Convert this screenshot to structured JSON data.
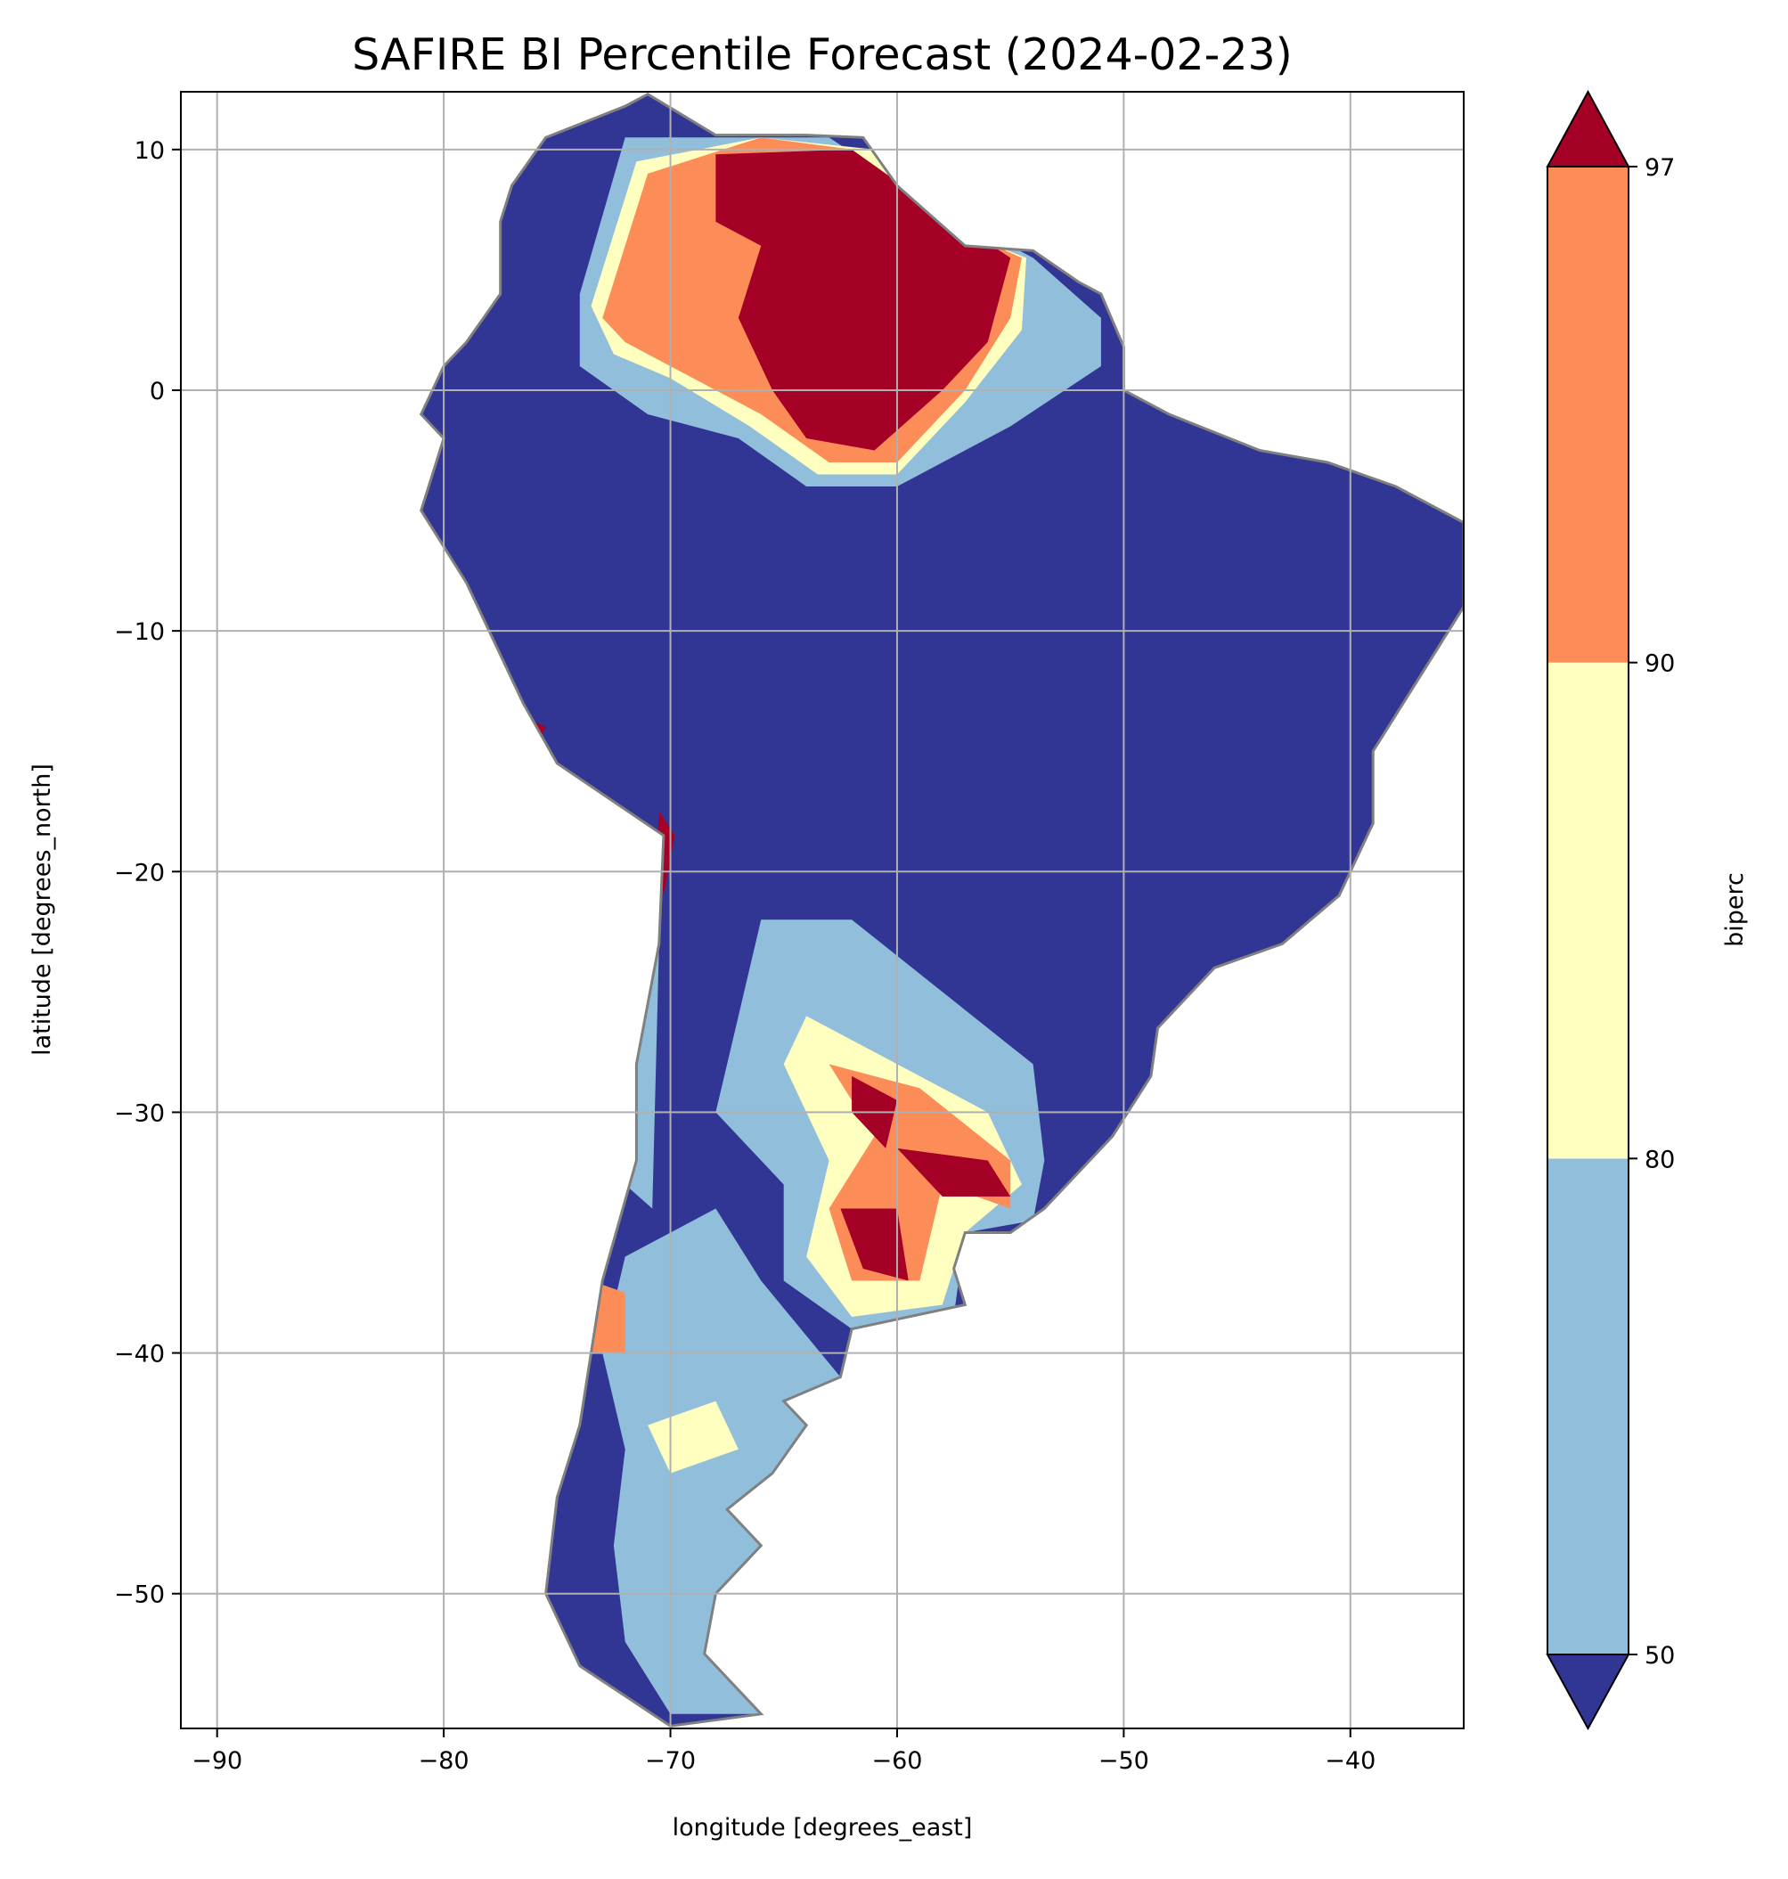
{
  "chart_data": {
    "type": "heatmap",
    "title": "SAFIRE BI Percentile Forecast (2024-02-23)",
    "xlabel": "longitude [degrees_east]",
    "ylabel": "latitude [degrees_north]",
    "xlim": [
      -91.6,
      -35.0
    ],
    "ylim": [
      -55.6,
      12.4
    ],
    "xticks": [
      -90,
      -80,
      -70,
      -60,
      -50,
      -40
    ],
    "xtick_labels": [
      "−90",
      "−80",
      "−70",
      "−60",
      "−50",
      "−40"
    ],
    "yticks": [
      10,
      0,
      -10,
      -20,
      -30,
      -40,
      -50
    ],
    "ytick_labels": [
      "10",
      "0",
      "−10",
      "−20",
      "−30",
      "−40",
      "−50"
    ],
    "grid": true,
    "colorbar": {
      "label": "biperc",
      "boundaries": [
        50,
        80,
        90,
        97
      ],
      "tick_labels": [
        "50",
        "80",
        "90",
        "97"
      ],
      "extend": "both",
      "colors": {
        "below_50": "#313695",
        "50_80": "#91bfdb",
        "80_90": "#ffffbf",
        "90_97": "#fc8d59",
        "above_97": "#a50026"
      }
    },
    "border_color": "#808080",
    "land_outline": [
      [
        -77,
        8.5
      ],
      [
        -75.5,
        10.5
      ],
      [
        -72,
        11.8
      ],
      [
        -71,
        12.3
      ],
      [
        -68,
        10.6
      ],
      [
        -64,
        10.6
      ],
      [
        -61.5,
        10.5
      ],
      [
        -60,
        8.5
      ],
      [
        -57,
        6
      ],
      [
        -54,
        5.8
      ],
      [
        -52,
        4.5
      ],
      [
        -51,
        4
      ],
      [
        -50,
        1.8
      ],
      [
        -50,
        0
      ],
      [
        -48,
        -1
      ],
      [
        -44,
        -2.5
      ],
      [
        -41,
        -3
      ],
      [
        -38,
        -4
      ],
      [
        -35,
        -5.5
      ],
      [
        -35,
        -9
      ],
      [
        -37,
        -12
      ],
      [
        -39,
        -15
      ],
      [
        -39,
        -18
      ],
      [
        -40.5,
        -21
      ],
      [
        -43,
        -23
      ],
      [
        -46,
        -24
      ],
      [
        -48.5,
        -26.5
      ],
      [
        -48.8,
        -28.5
      ],
      [
        -50.5,
        -31
      ],
      [
        -52,
        -32.5
      ],
      [
        -53.5,
        -34
      ],
      [
        -55,
        -35
      ],
      [
        -57,
        -35
      ],
      [
        -57.5,
        -36.5
      ],
      [
        -57,
        -38
      ],
      [
        -62,
        -39
      ],
      [
        -62.5,
        -41
      ],
      [
        -65,
        -42
      ],
      [
        -64,
        -43
      ],
      [
        -65.5,
        -45
      ],
      [
        -67.5,
        -46.5
      ],
      [
        -66,
        -48
      ],
      [
        -68,
        -50
      ],
      [
        -68.5,
        -52.5
      ],
      [
        -66,
        -55
      ],
      [
        -70,
        -55.5
      ],
      [
        -74,
        -53
      ],
      [
        -75.5,
        -50
      ],
      [
        -75,
        -46
      ],
      [
        -74,
        -43
      ],
      [
        -73.5,
        -40
      ],
      [
        -73,
        -37
      ],
      [
        -71.5,
        -32
      ],
      [
        -71.5,
        -28
      ],
      [
        -70.5,
        -23
      ],
      [
        -70.3,
        -18.5
      ],
      [
        -75,
        -15.5
      ],
      [
        -76.5,
        -13
      ],
      [
        -79,
        -8
      ],
      [
        -81,
        -5
      ],
      [
        -80,
        -2
      ],
      [
        -81,
        -1
      ],
      [
        -80,
        1
      ],
      [
        -79,
        2
      ],
      [
        -77.5,
        4
      ],
      [
        -77.5,
        7
      ],
      [
        -77,
        8.5
      ]
    ],
    "regions": [
      {
        "class": "50_80",
        "points": [
          [
            -74,
            4
          ],
          [
            -72,
            10.5
          ],
          [
            -63,
            10.5
          ],
          [
            -59,
            8
          ],
          [
            -54,
            5.5
          ],
          [
            -51,
            3
          ],
          [
            -51,
            1
          ],
          [
            -55,
            -1.5
          ],
          [
            -60,
            -4
          ],
          [
            -64,
            -4
          ],
          [
            -67,
            -2
          ],
          [
            -71,
            -1
          ],
          [
            -74,
            1
          ]
        ]
      },
      {
        "class": "80_90",
        "points": [
          [
            -73.5,
            3.5
          ],
          [
            -71.5,
            9.5
          ],
          [
            -66,
            10.5
          ],
          [
            -61,
            10
          ],
          [
            -57,
            6.5
          ],
          [
            -54.3,
            5.5
          ],
          [
            -54.5,
            2.5
          ],
          [
            -57,
            -0.5
          ],
          [
            -60,
            -3.5
          ],
          [
            -63.5,
            -3.5
          ],
          [
            -66.5,
            -1.5
          ],
          [
            -70,
            0.5
          ],
          [
            -72.5,
            1.5
          ]
        ]
      },
      {
        "class": "90_97",
        "points": [
          [
            -73,
            3
          ],
          [
            -71,
            9
          ],
          [
            -66,
            10.5
          ],
          [
            -62,
            10
          ],
          [
            -58,
            7
          ],
          [
            -54.5,
            5.5
          ],
          [
            -55,
            3
          ],
          [
            -57,
            0
          ],
          [
            -60,
            -3
          ],
          [
            -63,
            -3
          ],
          [
            -66,
            -1
          ],
          [
            -70,
            1
          ],
          [
            -72,
            2
          ]
        ]
      },
      {
        "class": "above_97",
        "points": [
          [
            -68,
            9.8
          ],
          [
            -62,
            10
          ],
          [
            -59,
            8
          ],
          [
            -55,
            5.5
          ],
          [
            -56,
            2
          ],
          [
            -58,
            0
          ],
          [
            -61,
            -2.5
          ],
          [
            -64,
            -2
          ],
          [
            -65.5,
            0
          ],
          [
            -67,
            3
          ],
          [
            -66,
            6
          ],
          [
            -68,
            7
          ]
        ]
      },
      {
        "class": "50_80",
        "points": [
          [
            -66,
            -22
          ],
          [
            -62,
            -22
          ],
          [
            -58,
            -25
          ],
          [
            -54,
            -28
          ],
          [
            -53.5,
            -32
          ],
          [
            -54,
            -34.5
          ],
          [
            -57,
            -35
          ],
          [
            -57.5,
            -38.5
          ],
          [
            -62,
            -39
          ],
          [
            -65,
            -37
          ],
          [
            -65,
            -33
          ],
          [
            -68,
            -30
          ],
          [
            -67,
            -26
          ]
        ]
      },
      {
        "class": "80_90",
        "points": [
          [
            -64,
            -26
          ],
          [
            -60,
            -28
          ],
          [
            -56,
            -30
          ],
          [
            -54.5,
            -33
          ],
          [
            -57,
            -35
          ],
          [
            -58,
            -38
          ],
          [
            -62,
            -38.5
          ],
          [
            -64,
            -36
          ],
          [
            -63,
            -32
          ],
          [
            -65,
            -28
          ]
        ]
      },
      {
        "class": "90_97",
        "points": [
          [
            -63,
            -28
          ],
          [
            -59,
            -29
          ],
          [
            -55,
            -32
          ],
          [
            -55,
            -34
          ],
          [
            -58,
            -33
          ],
          [
            -59,
            -37
          ],
          [
            -62,
            -37
          ],
          [
            -63,
            -34
          ],
          [
            -61,
            -31
          ]
        ]
      },
      {
        "class": "above_97",
        "points": [
          [
            -62,
            -28.5
          ],
          [
            -60,
            -29.5
          ],
          [
            -60.5,
            -31.5
          ],
          [
            -62,
            -30
          ]
        ]
      },
      {
        "class": "above_97",
        "points": [
          [
            -60,
            -31.5
          ],
          [
            -56,
            -32
          ],
          [
            -55,
            -33.5
          ],
          [
            -58,
            -33.5
          ]
        ]
      },
      {
        "class": "above_97",
        "points": [
          [
            -62.5,
            -34
          ],
          [
            -60,
            -34
          ],
          [
            -59.5,
            -37
          ],
          [
            -61.5,
            -36.5
          ]
        ]
      },
      {
        "class": "50_80",
        "points": [
          [
            -72,
            -36
          ],
          [
            -68,
            -34
          ],
          [
            -66,
            -37
          ],
          [
            -62.5,
            -41
          ],
          [
            -65,
            -42
          ],
          [
            -64,
            -43
          ],
          [
            -65.5,
            -45
          ],
          [
            -67.5,
            -46.5
          ],
          [
            -66,
            -48
          ],
          [
            -68,
            -50
          ],
          [
            -68.5,
            -52.5
          ],
          [
            -66,
            -55
          ],
          [
            -70,
            -55
          ],
          [
            -72,
            -52
          ],
          [
            -72.5,
            -48
          ],
          [
            -72,
            -44
          ],
          [
            -73,
            -40
          ]
        ]
      },
      {
        "class": "80_90",
        "points": [
          [
            -71,
            -43
          ],
          [
            -68,
            -42
          ],
          [
            -67,
            -44
          ],
          [
            -70,
            -45
          ]
        ]
      },
      {
        "class": "90_97",
        "points": [
          [
            -73.5,
            -37
          ],
          [
            -72,
            -37.5
          ],
          [
            -72,
            -40
          ],
          [
            -73.5,
            -40
          ]
        ]
      },
      {
        "class": "above_97",
        "points": [
          [
            -76.5,
            -13.5
          ],
          [
            -75.5,
            -14
          ],
          [
            -76,
            -15
          ],
          [
            -77,
            -14.5
          ]
        ]
      },
      {
        "class": "above_97",
        "points": [
          [
            -70.5,
            -17.5
          ],
          [
            -69.8,
            -18.5
          ],
          [
            -70.3,
            -21
          ],
          [
            -70.6,
            -19
          ]
        ]
      },
      {
        "class": "50_80",
        "points": [
          [
            -72,
            -24
          ],
          [
            -70.5,
            -23
          ],
          [
            -70.8,
            -34
          ],
          [
            -72,
            -33
          ]
        ]
      }
    ]
  }
}
